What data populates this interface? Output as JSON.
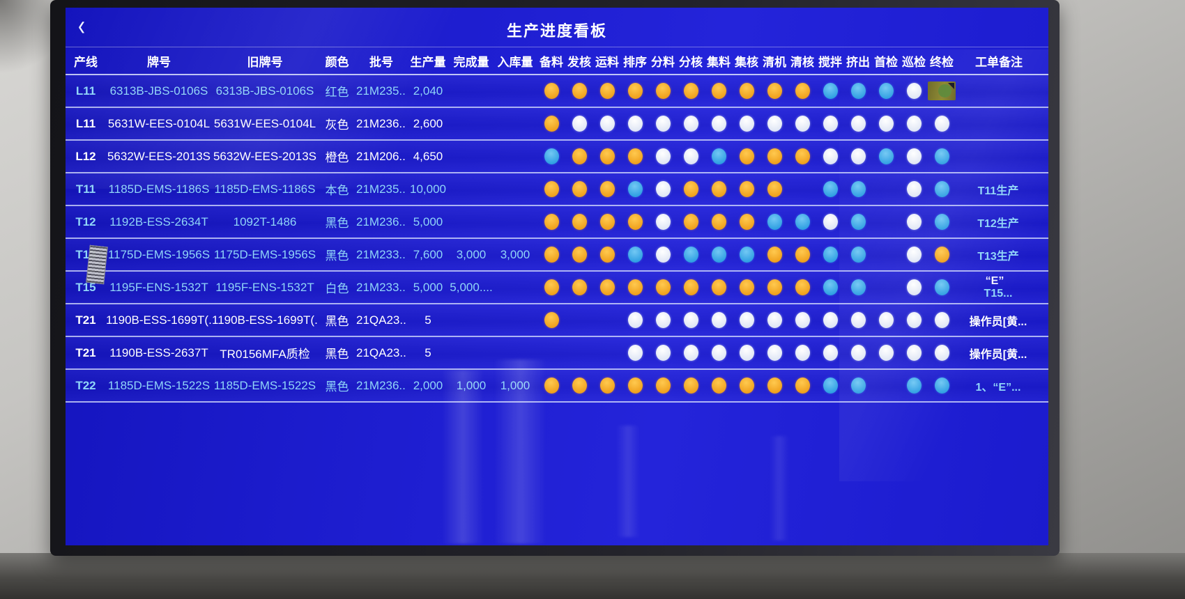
{
  "window": {
    "title": "生产进度看板",
    "back_glyph": "‹"
  },
  "status_colors": {
    "done_orange": "#efa01c",
    "active_blue": "#2f9fe2",
    "pending_white": "#ffffff"
  },
  "table": {
    "fixed_columns": [
      {
        "key": "line",
        "label": "产线"
      },
      {
        "key": "brand",
        "label": "牌号"
      },
      {
        "key": "old_brand",
        "label": "旧牌号"
      },
      {
        "key": "color",
        "label": "颜色"
      },
      {
        "key": "batch",
        "label": "批号"
      },
      {
        "key": "production",
        "label": "生产量"
      },
      {
        "key": "completed",
        "label": "完成量"
      },
      {
        "key": "stored",
        "label": "入库量"
      }
    ],
    "process_columns": [
      "备料",
      "发核",
      "运料",
      "排序",
      "分料",
      "分核",
      "集料",
      "集核",
      "清机",
      "清核",
      "搅拌",
      "挤出",
      "首检",
      "巡检",
      "终检"
    ],
    "remark_column": "工单备注",
    "rows": [
      {
        "line": "L11",
        "brand": "6313B-JBS-0106S",
        "old_brand": "6313B-JBS-0106S",
        "color": "红色",
        "batch": "21M235...",
        "production": "2,040",
        "completed": "",
        "stored": "",
        "dots": "OOOOOOOOOOBBBWS",
        "remark_prefix": "",
        "remark": "",
        "tone": "cyan"
      },
      {
        "line": "L11",
        "brand": "5631W-EES-0104L",
        "old_brand": "5631W-EES-0104L",
        "color": "灰色",
        "batch": "21M236...",
        "production": "2,600",
        "completed": "",
        "stored": "",
        "dots": "OWWWWWWWWWWWWWW",
        "remark_prefix": "",
        "remark": "",
        "tone": "white"
      },
      {
        "line": "L12",
        "brand": "5632W-EES-2013S",
        "old_brand": "5632W-EES-2013S",
        "color": "橙色",
        "batch": "21M206...",
        "production": "4,650",
        "completed": "",
        "stored": "",
        "dots": "BOOOWWBOOOWWBWB",
        "remark_prefix": "",
        "remark": "",
        "tone": "white"
      },
      {
        "line": "T11",
        "brand": "1185D-EMS-1186S",
        "old_brand": "1185D-EMS-1186S",
        "color": "本色",
        "batch": "21M235...",
        "production": "10,000",
        "completed": "",
        "stored": "",
        "dots": "OOOBWOOOO-BB-WB",
        "remark_prefix": "",
        "remark": "T11生产",
        "tone": "cyan"
      },
      {
        "line": "T12",
        "brand": "1192B-ESS-2634T",
        "old_brand": "1092T-1486",
        "color": "黑色",
        "batch": "21M236...",
        "production": "5,000",
        "completed": "",
        "stored": "",
        "dots": "OOOOWOOOBBWB-WB",
        "remark_prefix": "",
        "remark": "T12生产",
        "tone": "cyan"
      },
      {
        "line": "T13",
        "brand": "1175D-EMS-1956S",
        "old_brand": "1175D-EMS-1956S",
        "color": "黑色",
        "batch": "21M233...",
        "production": "7,600",
        "completed": "3,000",
        "stored": "3,000",
        "dots": "OOOBWBBBOOBB-WO",
        "remark_prefix": "",
        "remark": "T13生产",
        "tone": "cyan"
      },
      {
        "line": "T15",
        "brand": "1195F-ENS-1532T",
        "old_brand": "1195F-ENS-1532T",
        "color": "白色",
        "batch": "21M233...",
        "production": "5,000",
        "completed": "5,000....",
        "stored": "",
        "dots": "OOOOOOOOOOBB-WB",
        "remark_prefix": "“E”",
        "remark": "T15...",
        "tone": "cyan"
      },
      {
        "line": "T21",
        "brand": "1190B-ESS-1699T(...",
        "old_brand": "1190B-ESS-1699T(...",
        "color": "黑色",
        "batch": "21QA23...",
        "production": "5",
        "completed": "",
        "stored": "",
        "dots": "O--WWWWWWWWWWWW",
        "remark_prefix": "",
        "remark": "操作员[黄...",
        "tone": "white"
      },
      {
        "line": "T21",
        "brand": "1190B-ESS-2637T",
        "old_brand": "TR0156MFA质检",
        "color": "黑色",
        "batch": "21QA23...",
        "production": "5",
        "completed": "",
        "stored": "",
        "dots": "---WWWWWWWWWWWW",
        "remark_prefix": "",
        "remark": "操作员[黄...",
        "tone": "white"
      },
      {
        "line": "T22",
        "brand": "1185D-EMS-1522S",
        "old_brand": "1185D-EMS-1522S",
        "color": "黑色",
        "batch": "21M236...",
        "production": "2,000",
        "completed": "1,000",
        "stored": "1,000",
        "dots": "OOOOOOOOOOBB-BB",
        "remark_prefix": "",
        "remark": "1、“E”...",
        "tone": "cyan"
      }
    ]
  },
  "artifacts": {
    "energy_label_sticker": "olive-energy-sticker",
    "barcode_sticker": "barcode-sticker"
  }
}
